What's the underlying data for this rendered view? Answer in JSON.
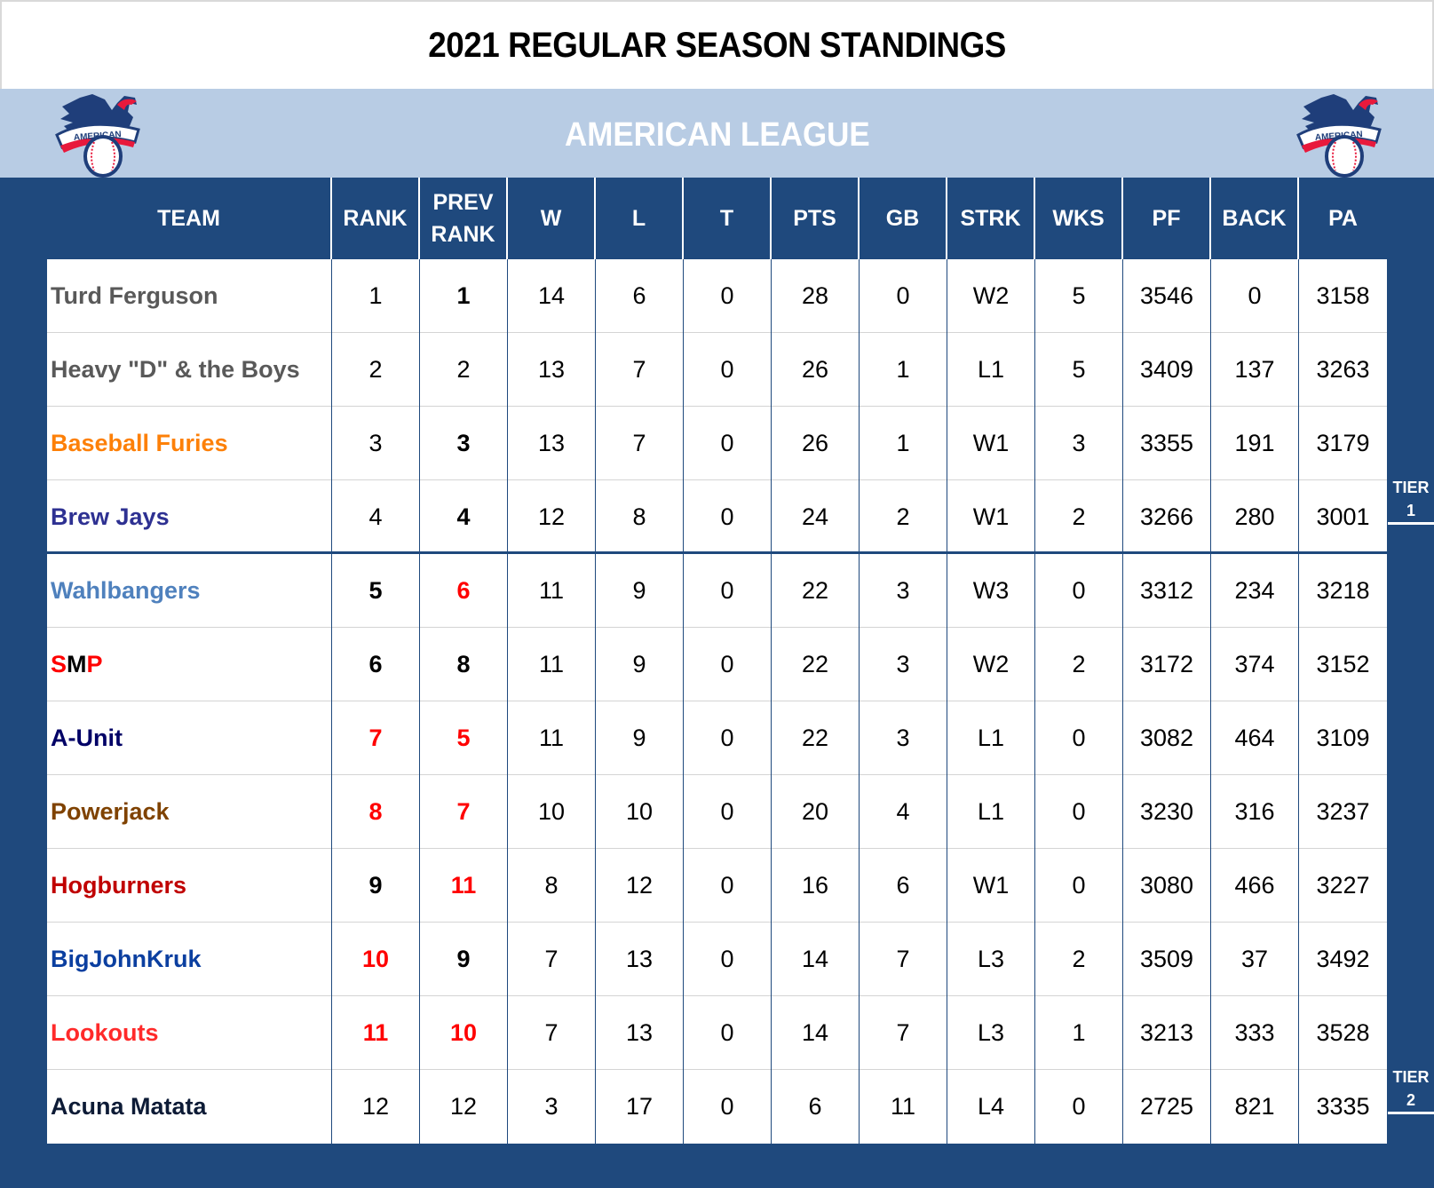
{
  "title": "2021 REGULAR SEASON STANDINGS",
  "league": {
    "name": "AMERICAN LEAGUE",
    "logo_icon": "american-league-eagle-logo-icon",
    "logo_text": "AMERICAN"
  },
  "columns": [
    "TEAM",
    "RANK",
    "PREV\nRANK",
    "W",
    "L",
    "T",
    "PTS",
    "GB",
    "STRK",
    "WKS",
    "PF",
    "BACK",
    "PA"
  ],
  "column_labels": {
    "team": "TEAM",
    "rank": "RANK",
    "prev_rank_1": "PREV",
    "prev_rank_2": "RANK",
    "w": "W",
    "l": "L",
    "t": "T",
    "pts": "PTS",
    "gb": "GB",
    "strk": "STRK",
    "wks": "WKS",
    "pf": "PF",
    "back": "BACK",
    "pa": "PA"
  },
  "colors": {
    "navy": "#1f497d",
    "light_blue": "#b8cce4",
    "red_highlight": "#ff0000"
  },
  "rows": [
    {
      "team": "Turd Ferguson",
      "team_color": "#595959",
      "rank": "1",
      "rank_style": "normal",
      "prev_rank": "1",
      "prev_style": "bold",
      "w": "14",
      "l": "6",
      "t": "0",
      "pts": "28",
      "gb": "0",
      "strk": "W2",
      "wks": "5",
      "pf": "3546",
      "back": "0",
      "pa": "3158"
    },
    {
      "team": "Heavy \"D\" & the Boys",
      "team_color": "#595959",
      "rank": "2",
      "rank_style": "normal",
      "prev_rank": "2",
      "prev_style": "normal",
      "w": "13",
      "l": "7",
      "t": "0",
      "pts": "26",
      "gb": "1",
      "strk": "L1",
      "wks": "5",
      "pf": "3409",
      "back": "137",
      "pa": "3263"
    },
    {
      "team": "Baseball Furies",
      "team_color": "#fd8008",
      "rank": "3",
      "rank_style": "normal",
      "prev_rank": "3",
      "prev_style": "bold",
      "w": "13",
      "l": "7",
      "t": "0",
      "pts": "26",
      "gb": "1",
      "strk": "W1",
      "wks": "3",
      "pf": "3355",
      "back": "191",
      "pa": "3179"
    },
    {
      "team": "Brew Jays",
      "team_color": "#2e3192",
      "rank": "4",
      "rank_style": "normal",
      "prev_rank": "4",
      "prev_style": "bold",
      "w": "12",
      "l": "8",
      "t": "0",
      "pts": "24",
      "gb": "2",
      "strk": "W1",
      "wks": "2",
      "pf": "3266",
      "back": "280",
      "pa": "3001"
    },
    {
      "team": "Wahlbangers",
      "team_color": "#4f81bd",
      "rank": "5",
      "rank_style": "bold",
      "prev_rank": "6",
      "prev_style": "bold-red",
      "w": "11",
      "l": "9",
      "t": "0",
      "pts": "22",
      "gb": "3",
      "strk": "W3",
      "wks": "0",
      "pf": "3312",
      "back": "234",
      "pa": "3218"
    },
    {
      "team": "SMP",
      "team_color": "#ff0000",
      "team_parts": [
        {
          "text": "S",
          "color": "#ff0000"
        },
        {
          "text": "M",
          "color": "#000000"
        },
        {
          "text": "P",
          "color": "#ff0000"
        }
      ],
      "rank": "6",
      "rank_style": "bold",
      "prev_rank": "8",
      "prev_style": "bold",
      "w": "11",
      "l": "9",
      "t": "0",
      "pts": "22",
      "gb": "3",
      "strk": "W2",
      "wks": "2",
      "pf": "3172",
      "back": "374",
      "pa": "3152"
    },
    {
      "team": "A-Unit",
      "team_color": "#000066",
      "rank": "7",
      "rank_style": "bold-red",
      "prev_rank": "5",
      "prev_style": "bold-red",
      "w": "11",
      "l": "9",
      "t": "0",
      "pts": "22",
      "gb": "3",
      "strk": "L1",
      "wks": "0",
      "pf": "3082",
      "back": "464",
      "pa": "3109"
    },
    {
      "team": "Powerjack",
      "team_color": "#7f4200",
      "rank": "8",
      "rank_style": "bold-red",
      "prev_rank": "7",
      "prev_style": "bold-red",
      "w": "10",
      "l": "10",
      "t": "0",
      "pts": "20",
      "gb": "4",
      "strk": "L1",
      "wks": "0",
      "pf": "3230",
      "back": "316",
      "pa": "3237"
    },
    {
      "team": "Hogburners",
      "team_color": "#c00000",
      "rank": "9",
      "rank_style": "bold",
      "prev_rank": "11",
      "prev_style": "bold-red",
      "w": "8",
      "l": "12",
      "t": "0",
      "pts": "16",
      "gb": "6",
      "strk": "W1",
      "wks": "0",
      "pf": "3080",
      "back": "466",
      "pa": "3227"
    },
    {
      "team": "BigJohnKruk",
      "team_color": "#0b3fa0",
      "rank": "10",
      "rank_style": "bold-red",
      "prev_rank": "9",
      "prev_style": "bold",
      "w": "7",
      "l": "13",
      "t": "0",
      "pts": "14",
      "gb": "7",
      "strk": "L3",
      "wks": "2",
      "pf": "3509",
      "back": "37",
      "pa": "3492"
    },
    {
      "team": "Lookouts",
      "team_color": "#ff2a2a",
      "rank": "11",
      "rank_style": "bold-red",
      "prev_rank": "10",
      "prev_style": "bold-red",
      "w": "7",
      "l": "13",
      "t": "0",
      "pts": "14",
      "gb": "7",
      "strk": "L3",
      "wks": "1",
      "pf": "3213",
      "back": "333",
      "pa": "3528"
    },
    {
      "team": "Acuna Matata",
      "team_color": "#0d1b36",
      "rank": "12",
      "rank_style": "normal",
      "prev_rank": "12",
      "prev_style": "normal",
      "w": "3",
      "l": "17",
      "t": "0",
      "pts": "6",
      "gb": "11",
      "strk": "L4",
      "wks": "0",
      "pf": "2725",
      "back": "821",
      "pa": "3335"
    }
  ],
  "tiers": [
    {
      "line1": "TIER",
      "line2": "1",
      "after_row": 4
    },
    {
      "line1": "TIER",
      "line2": "2",
      "after_row": 12
    }
  ]
}
